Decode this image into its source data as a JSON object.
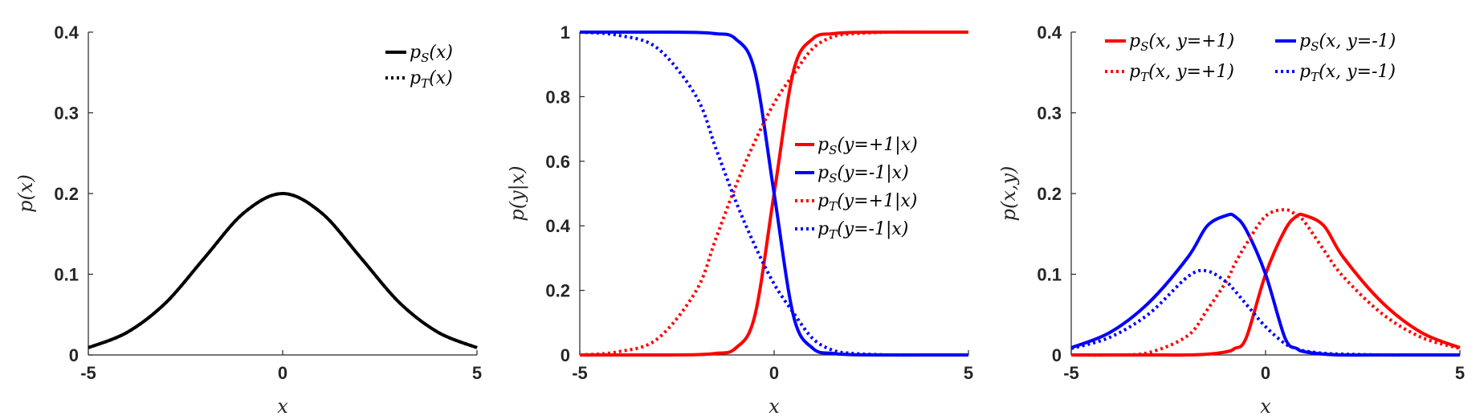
{
  "chart_data": [
    {
      "type": "line",
      "id": "marginal",
      "xlabel": "p(x)",
      "xaxis_label": "x",
      "ylabel": "p(x)",
      "xlim": [
        -5,
        5
      ],
      "ylim": [
        0,
        0.4
      ],
      "xticks": [
        -5,
        0,
        5
      ],
      "yticks": [
        0,
        0.1,
        0.2,
        0.3,
        0.4
      ],
      "xtick_labels": [
        "-5",
        "0",
        "5"
      ],
      "ytick_labels": [
        "0",
        "0.1",
        "0.2",
        "0.3",
        "0.4"
      ],
      "legend_position": "top-right",
      "x": [
        -5,
        -4,
        -3,
        -2,
        -1,
        0,
        1,
        2,
        3,
        4,
        5
      ],
      "series": [
        {
          "name": "p_S(x)",
          "color": "#000000",
          "dash": "solid",
          "values": [
            0.009,
            0.028,
            0.065,
            0.121,
            0.176,
            0.2,
            0.176,
            0.121,
            0.065,
            0.028,
            0.009
          ]
        },
        {
          "name": "p_T(x)",
          "color": "#000000",
          "dash": "dotted",
          "values": [
            0.009,
            0.028,
            0.065,
            0.121,
            0.176,
            0.2,
            0.176,
            0.121,
            0.065,
            0.028,
            0.009
          ]
        }
      ]
    },
    {
      "type": "line",
      "id": "conditional",
      "xaxis_label": "x",
      "ylabel": "p(y|x)",
      "xlim": [
        -5,
        5
      ],
      "ylim": [
        0,
        1
      ],
      "xticks": [
        -5,
        0,
        5
      ],
      "yticks": [
        0,
        0.2,
        0.4,
        0.6,
        0.8,
        1
      ],
      "xtick_labels": [
        "-5",
        "0",
        "5"
      ],
      "ytick_labels": [
        "0",
        "0.2",
        "0.4",
        "0.6",
        "0.8",
        "1"
      ],
      "legend_position": "right",
      "x": [
        -5,
        -4,
        -3,
        -2,
        -1.5,
        -1,
        -0.5,
        0,
        0.5,
        1,
        1.5,
        2,
        3,
        4,
        5
      ],
      "series": [
        {
          "name": "p_S(y=+1|x)",
          "color": "#ff0000",
          "dash": "solid",
          "values": [
            0.0,
            0.0,
            0.0,
            0.001,
            0.005,
            0.02,
            0.12,
            0.5,
            0.88,
            0.98,
            0.995,
            0.999,
            1.0,
            1.0,
            1.0
          ]
        },
        {
          "name": "p_S(y=-1|x)",
          "color": "#0000ff",
          "dash": "solid",
          "values": [
            1.0,
            1.0,
            1.0,
            0.999,
            0.995,
            0.98,
            0.88,
            0.5,
            0.12,
            0.02,
            0.005,
            0.001,
            0.0,
            0.0,
            0.0
          ]
        },
        {
          "name": "p_T(y=+1|x)",
          "color": "#ff0000",
          "dash": "dotted",
          "values": [
            0.0,
            0.01,
            0.05,
            0.2,
            0.36,
            0.52,
            0.66,
            0.78,
            0.87,
            0.95,
            0.985,
            0.995,
            1.0,
            1.0,
            1.0
          ]
        },
        {
          "name": "p_T(y=-1|x)",
          "color": "#0000ff",
          "dash": "dotted",
          "values": [
            1.0,
            0.99,
            0.95,
            0.8,
            0.64,
            0.48,
            0.34,
            0.22,
            0.13,
            0.05,
            0.015,
            0.005,
            0.0,
            0.0,
            0.0
          ]
        }
      ]
    },
    {
      "type": "line",
      "id": "joint",
      "xaxis_label": "x",
      "ylabel": "p(x,y)",
      "xlim": [
        -5,
        5
      ],
      "ylim": [
        0,
        0.4
      ],
      "xticks": [
        -5,
        0,
        5
      ],
      "yticks": [
        0,
        0.1,
        0.2,
        0.3,
        0.4
      ],
      "xtick_labels": [
        "-5",
        "0",
        "5"
      ],
      "ytick_labels": [
        "0",
        "0.1",
        "0.2",
        "0.3",
        "0.4"
      ],
      "legend_position": "top",
      "x": [
        -5,
        -4,
        -3,
        -2,
        -1.5,
        -1,
        -0.8,
        -0.5,
        0,
        0.5,
        0.8,
        1,
        1.5,
        2,
        3,
        4,
        5
      ],
      "series": [
        {
          "name": "p_S(x, y=+1)",
          "color": "#ff0000",
          "dash": "solid",
          "values": [
            0.0,
            0.0,
            0.0,
            0.0,
            0.001,
            0.004,
            0.008,
            0.021,
            0.1,
            0.155,
            0.172,
            0.173,
            0.16,
            0.121,
            0.065,
            0.028,
            0.009
          ]
        },
        {
          "name": "p_S(x, y=-1)",
          "color": "#0000ff",
          "dash": "solid",
          "values": [
            0.009,
            0.028,
            0.065,
            0.121,
            0.16,
            0.173,
            0.172,
            0.155,
            0.1,
            0.021,
            0.008,
            0.004,
            0.001,
            0.0,
            0.0,
            0.0,
            0.0
          ]
        },
        {
          "name": "p_T(x, y=+1)",
          "color": "#ff0000",
          "dash": "dotted",
          "values": [
            0.0,
            0.0,
            0.003,
            0.024,
            0.056,
            0.092,
            0.112,
            0.137,
            0.172,
            0.18,
            0.173,
            0.165,
            0.13,
            0.097,
            0.051,
            0.022,
            0.008
          ]
        },
        {
          "name": "p_T(x, y=-1)",
          "color": "#0000ff",
          "dash": "dotted",
          "values": [
            0.008,
            0.022,
            0.051,
            0.097,
            0.104,
            0.09,
            0.08,
            0.063,
            0.035,
            0.014,
            0.008,
            0.005,
            0.002,
            0.001,
            0.0,
            0.0,
            0.0
          ]
        }
      ]
    }
  ]
}
